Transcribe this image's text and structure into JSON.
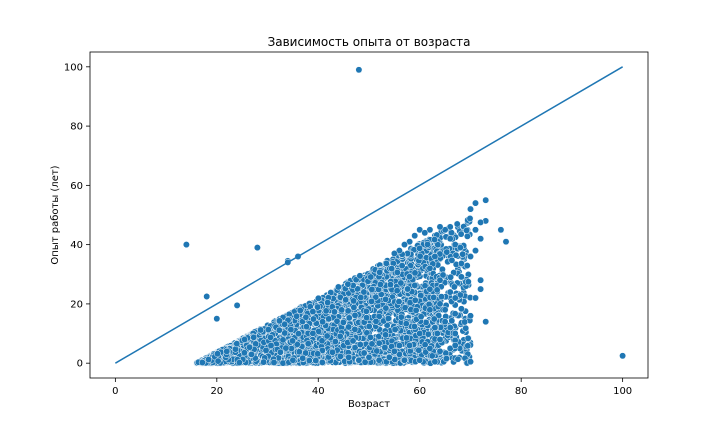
{
  "chart_data": {
    "type": "scatter",
    "title": "Зависимость опыта от возраста",
    "xlabel": "Возраст",
    "ylabel": "Опыт работы (лет)",
    "xlim": [
      -5,
      105
    ],
    "ylim": [
      -5,
      105
    ],
    "xticks": [
      0,
      20,
      40,
      60,
      80,
      100
    ],
    "yticks": [
      0,
      20,
      40,
      60,
      80,
      100
    ],
    "grid": false,
    "color": "#1f77b4",
    "reference_line": {
      "x": [
        0,
        100
      ],
      "y": [
        0,
        100
      ]
    },
    "dense_cloud_description": "Dense cloud of points between age 15 and 70, experience from 0 up to roughly age minus 15",
    "points": [
      [
        14,
        40
      ],
      [
        18,
        22.5
      ],
      [
        20,
        15
      ],
      [
        24,
        19.5
      ],
      [
        28,
        39
      ],
      [
        34,
        34.5
      ],
      [
        34,
        34
      ],
      [
        36,
        36
      ],
      [
        48,
        99
      ],
      [
        100,
        2.5
      ],
      [
        70,
        0.5
      ],
      [
        63,
        0.5
      ],
      [
        62,
        5
      ],
      [
        64,
        4
      ],
      [
        66,
        5
      ],
      [
        67,
        6
      ],
      [
        68,
        23
      ],
      [
        73,
        14
      ],
      [
        70,
        16
      ],
      [
        71,
        22
      ],
      [
        72,
        25
      ],
      [
        72,
        28
      ],
      [
        70,
        36
      ],
      [
        71,
        38
      ],
      [
        72,
        42
      ],
      [
        73,
        48
      ],
      [
        72,
        47.5
      ],
      [
        71,
        45
      ],
      [
        70,
        52
      ],
      [
        71,
        54
      ],
      [
        73,
        55
      ],
      [
        76,
        45
      ],
      [
        77,
        41
      ],
      [
        66,
        42
      ],
      [
        67,
        40
      ],
      [
        68,
        39
      ],
      [
        66,
        46
      ],
      [
        65,
        45
      ],
      [
        64,
        46
      ],
      [
        62,
        45
      ],
      [
        60,
        45
      ],
      [
        58,
        41
      ],
      [
        56,
        38
      ],
      [
        55,
        37
      ],
      [
        57,
        40
      ],
      [
        59,
        43
      ],
      [
        61,
        44
      ],
      [
        65,
        14
      ],
      [
        66,
        12
      ],
      [
        67,
        10
      ],
      [
        64,
        8
      ],
      [
        63,
        12
      ],
      [
        62,
        18
      ],
      [
        64,
        20
      ],
      [
        66,
        24
      ],
      [
        60,
        10
      ],
      [
        58,
        6
      ],
      [
        56,
        3
      ],
      [
        54,
        2
      ],
      [
        52,
        1
      ],
      [
        50,
        2
      ],
      [
        48,
        1
      ],
      [
        46,
        2
      ],
      [
        60,
        1
      ],
      [
        57,
        1
      ],
      [
        55,
        4
      ],
      [
        65,
        18
      ],
      [
        67,
        22
      ],
      [
        64,
        28
      ],
      [
        62,
        32
      ],
      [
        63,
        36
      ]
    ]
  }
}
